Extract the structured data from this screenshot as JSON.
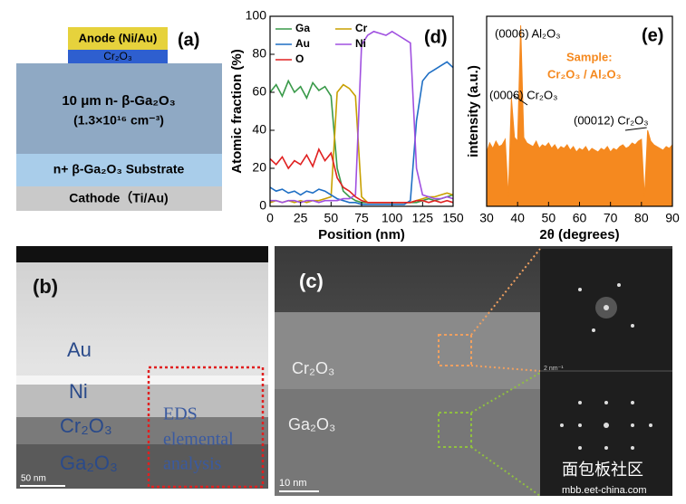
{
  "panel_a": {
    "label": "(a)",
    "anode": "Anode (Ni/Au)",
    "cap": "Cr₂O₃",
    "drift": "10 μm  n- β-Ga₂O₃",
    "doping": "(1.3×10¹⁶ cm⁻³)",
    "substrate": "n+ β-Ga₂O₃ Substrate",
    "cathode": "Cathode（Ti/Au)"
  },
  "panel_b": {
    "label": "(b)",
    "layers": [
      "Au",
      "Ni",
      "Cr₂O₃",
      "Ga₂O₃"
    ],
    "eds": [
      "EDS",
      "elemental",
      "analysis"
    ],
    "scale": "50 nm"
  },
  "panel_c": {
    "label": "(c)",
    "layers": [
      "Cr₂O₃",
      "Ga₂O₃"
    ],
    "scale": "10 nm",
    "fft_scale": "2 nm⁻¹"
  },
  "watermark": {
    "name": "面包板社区",
    "url": "mbb.eet-china.com"
  },
  "chart_data": [
    {
      "type": "line",
      "panel_label": "(d)",
      "xlabel": "Position (nm)",
      "ylabel": "Atomic fraction (%)",
      "x": [
        0,
        5,
        10,
        15,
        20,
        25,
        30,
        35,
        40,
        45,
        50,
        55,
        60,
        65,
        70,
        75,
        80,
        85,
        90,
        95,
        100,
        105,
        110,
        115,
        120,
        125,
        130,
        135,
        140,
        145,
        150
      ],
      "series": [
        {
          "name": "Ga",
          "color": "#3a9a4a",
          "values": [
            60,
            64,
            58,
            66,
            60,
            63,
            57,
            65,
            61,
            63,
            58,
            20,
            8,
            5,
            3,
            2,
            2,
            2,
            2,
            2,
            2,
            2,
            2,
            2,
            2,
            3,
            4,
            3,
            4,
            5,
            6
          ]
        },
        {
          "name": "Cr",
          "color": "#c8a000",
          "values": [
            2,
            3,
            2,
            3,
            2,
            3,
            2,
            3,
            3,
            4,
            5,
            60,
            64,
            62,
            58,
            5,
            2,
            2,
            2,
            2,
            2,
            2,
            2,
            2,
            3,
            4,
            5,
            5,
            6,
            7,
            6
          ]
        },
        {
          "name": "Au",
          "color": "#1f6fc4",
          "values": [
            10,
            8,
            9,
            7,
            8,
            6,
            8,
            7,
            9,
            8,
            6,
            4,
            3,
            2,
            2,
            1,
            1,
            1,
            1,
            1,
            1,
            1,
            1,
            3,
            45,
            66,
            70,
            72,
            74,
            76,
            73
          ]
        },
        {
          "name": "Ni",
          "color": "#a050e0",
          "values": [
            3,
            3,
            2,
            3,
            3,
            2,
            3,
            3,
            2,
            3,
            3,
            3,
            4,
            4,
            6,
            85,
            90,
            92,
            91,
            90,
            92,
            90,
            88,
            86,
            20,
            6,
            5,
            4,
            4,
            5,
            4
          ]
        },
        {
          "name": "O",
          "color": "#e02020",
          "values": [
            25,
            22,
            26,
            20,
            24,
            22,
            27,
            21,
            30,
            24,
            28,
            15,
            10,
            8,
            5,
            3,
            2,
            2,
            2,
            2,
            2,
            2,
            2,
            2,
            3,
            3,
            2,
            3,
            2,
            3,
            2
          ]
        }
      ],
      "xlim": [
        0,
        150
      ],
      "xticks": [
        0,
        25,
        50,
        75,
        100,
        125,
        150
      ],
      "ylim": [
        0,
        100
      ],
      "yticks": [
        0,
        20,
        40,
        60,
        80,
        100
      ]
    },
    {
      "type": "area",
      "panel_label": "(e)",
      "xlabel": "2θ (degrees)",
      "ylabel": "intensity (a.u.)",
      "x": [
        30,
        31,
        32,
        33,
        34,
        35,
        36,
        37,
        38,
        39,
        40,
        41,
        42,
        43,
        44,
        45,
        46,
        47,
        48,
        49,
        50,
        51,
        52,
        53,
        54,
        55,
        56,
        57,
        58,
        59,
        60,
        61,
        62,
        63,
        64,
        65,
        66,
        67,
        68,
        69,
        70,
        71,
        72,
        73,
        74,
        75,
        76,
        77,
        78,
        79,
        80,
        81,
        82,
        83,
        84,
        85,
        86,
        87,
        88,
        89,
        90
      ],
      "series": [
        {
          "name": "Sample:",
          "color": "#f5891f",
          "values": [
            30,
            35,
            32,
            36,
            33,
            34,
            37,
            5,
            60,
            38,
            36,
            100,
            38,
            35,
            34,
            33,
            36,
            32,
            34,
            33,
            35,
            32,
            34,
            31,
            33,
            32,
            34,
            31,
            33,
            30,
            32,
            31,
            33,
            30,
            32,
            31,
            30,
            32,
            31,
            33,
            30,
            32,
            31,
            33,
            34,
            32,
            33,
            35,
            34,
            36,
            37,
            5,
            42,
            36,
            34,
            33,
            32,
            31,
            33,
            32,
            34
          ]
        }
      ],
      "sample": "Cr₂O₃ / Al₂O₃",
      "annotations": [
        "(0006) Al₂O₃",
        "(0006) Cr₂O₃",
        "(00012) Cr₂O₃"
      ],
      "xlim": [
        30,
        90
      ],
      "xticks": [
        30,
        40,
        50,
        60,
        70,
        80,
        90
      ],
      "ylim": [
        0,
        105
      ]
    }
  ]
}
